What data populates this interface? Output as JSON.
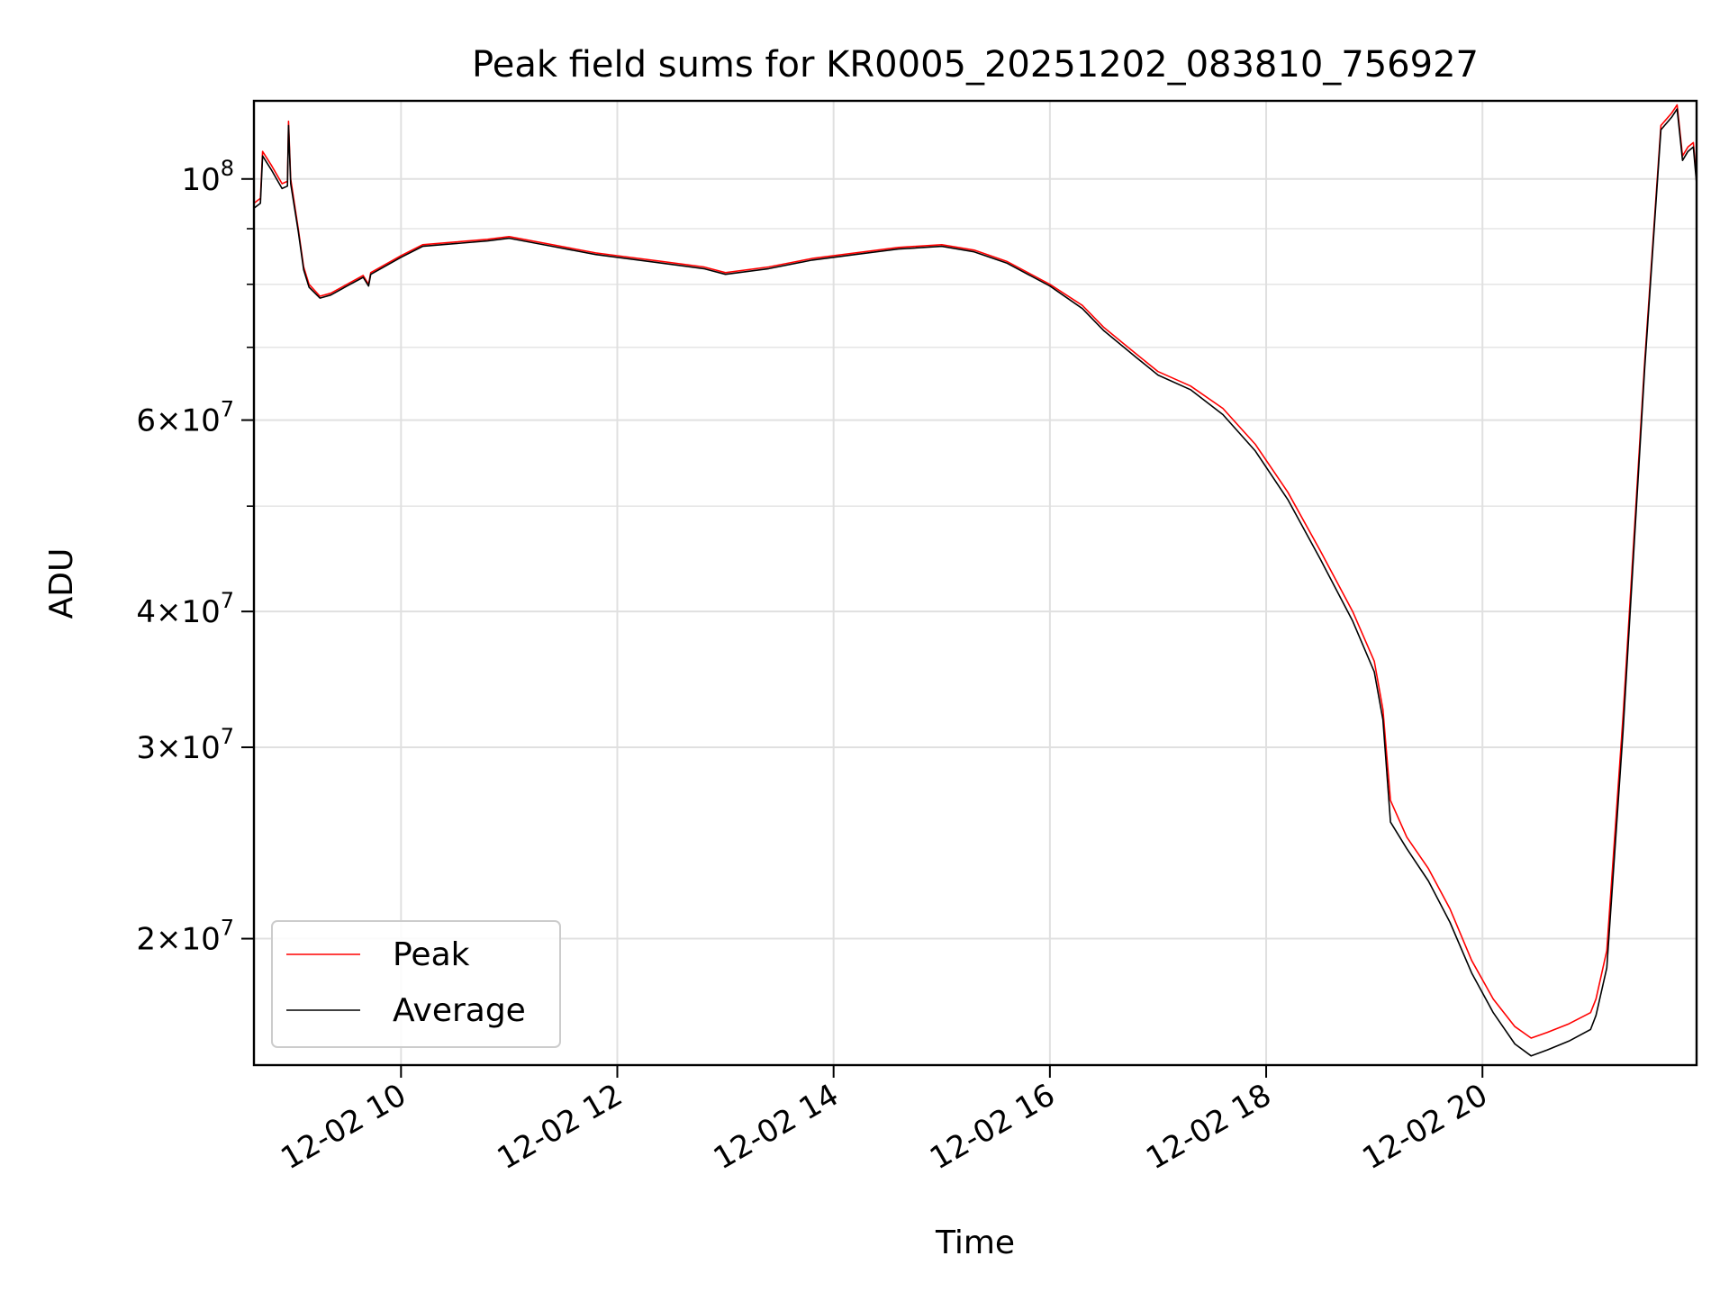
{
  "chart_data": {
    "type": "line",
    "title": "Peak field sums for KR0005_20251202_083810_756927",
    "xlabel": "Time",
    "ylabel": "ADU",
    "x_unit": "hour of 12-02",
    "xlim": [
      8.64,
      21.98
    ],
    "ylim": [
      15300000,
      118000000
    ],
    "y_scale": "log",
    "grid": true,
    "legend_position": "lower-left",
    "x_ticks": [
      {
        "value": 10,
        "label": "12-02 10"
      },
      {
        "value": 12,
        "label": "12-02 12"
      },
      {
        "value": 14,
        "label": "12-02 14"
      },
      {
        "value": 16,
        "label": "12-02 16"
      },
      {
        "value": 18,
        "label": "12-02 18"
      },
      {
        "value": 20,
        "label": "12-02 20"
      }
    ],
    "y_ticks": [
      {
        "value": 100000000,
        "mantissa": "",
        "base": "10",
        "exp": "8"
      },
      {
        "value": 60000000,
        "mantissa": "6",
        "base": "10",
        "exp": "7"
      },
      {
        "value": 40000000,
        "mantissa": "4",
        "base": "10",
        "exp": "7"
      },
      {
        "value": 30000000,
        "mantissa": "3",
        "base": "10",
        "exp": "7"
      },
      {
        "value": 20000000,
        "mantissa": "2",
        "base": "10",
        "exp": "7"
      }
    ],
    "y_minor_gridlines": [
      70000000,
      80000000,
      90000000,
      50000000
    ],
    "series": [
      {
        "name": "Peak",
        "color": "#ff0000",
        "x": [
          8.64,
          8.7,
          8.72,
          8.8,
          8.9,
          8.95,
          8.96,
          8.98,
          9.05,
          9.1,
          9.15,
          9.25,
          9.35,
          9.5,
          9.65,
          9.7,
          9.72,
          10.0,
          10.2,
          10.5,
          10.8,
          11.0,
          11.4,
          11.8,
          12.0,
          12.4,
          12.8,
          13.0,
          13.4,
          13.8,
          14.2,
          14.6,
          15.0,
          15.3,
          15.6,
          16.0,
          16.3,
          16.5,
          16.8,
          17.0,
          17.3,
          17.6,
          17.9,
          18.2,
          18.5,
          18.8,
          19.0,
          19.08,
          19.15,
          19.3,
          19.5,
          19.7,
          19.9,
          20.1,
          20.3,
          20.45,
          20.6,
          20.8,
          21.0,
          21.05,
          21.15,
          21.3,
          21.5,
          21.65,
          21.75,
          21.8,
          21.85,
          21.9,
          21.95,
          21.98
        ],
        "y": [
          95000000,
          96000000,
          106000000,
          103000000,
          99000000,
          99500000,
          113000000,
          100000000,
          90000000,
          83000000,
          80000000,
          78000000,
          78500000,
          80000000,
          81500000,
          80000000,
          82000000,
          85000000,
          87000000,
          87500000,
          88000000,
          88500000,
          87000000,
          85500000,
          85000000,
          84000000,
          83000000,
          82000000,
          83000000,
          84500000,
          85500000,
          86500000,
          87000000,
          86000000,
          84000000,
          80000000,
          76500000,
          73000000,
          69000000,
          66500000,
          64500000,
          61500000,
          57000000,
          51500000,
          45500000,
          40000000,
          36000000,
          32500000,
          26800000,
          24800000,
          23200000,
          21300000,
          19100000,
          17600000,
          16600000,
          16200000,
          16400000,
          16700000,
          17100000,
          17600000,
          19500000,
          32000000,
          68000000,
          112000000,
          115000000,
          117000000,
          105000000,
          107000000,
          108000000,
          100000000
        ]
      },
      {
        "name": "Average",
        "color": "#000000",
        "x": [
          8.64,
          8.7,
          8.72,
          8.8,
          8.9,
          8.95,
          8.96,
          8.98,
          9.05,
          9.1,
          9.15,
          9.25,
          9.35,
          9.5,
          9.65,
          9.7,
          9.72,
          10.0,
          10.2,
          10.5,
          10.8,
          11.0,
          11.4,
          11.8,
          12.0,
          12.4,
          12.8,
          13.0,
          13.4,
          13.8,
          14.2,
          14.6,
          15.0,
          15.3,
          15.6,
          16.0,
          16.3,
          16.5,
          16.8,
          17.0,
          17.3,
          17.6,
          17.9,
          18.2,
          18.5,
          18.8,
          19.0,
          19.08,
          19.15,
          19.3,
          19.5,
          19.7,
          19.9,
          20.1,
          20.3,
          20.45,
          20.6,
          20.8,
          21.0,
          21.05,
          21.15,
          21.3,
          21.5,
          21.65,
          21.75,
          21.8,
          21.85,
          21.9,
          21.95,
          21.98
        ],
        "y": [
          94000000,
          95000000,
          105000000,
          102000000,
          98000000,
          98500000,
          112000000,
          99000000,
          89500000,
          82500000,
          79500000,
          77700000,
          78200000,
          79700000,
          81200000,
          79700000,
          81700000,
          84700000,
          86700000,
          87200000,
          87700000,
          88200000,
          86700000,
          85200000,
          84700000,
          83700000,
          82700000,
          81700000,
          82700000,
          84200000,
          85200000,
          86200000,
          86700000,
          85700000,
          83700000,
          79700000,
          76000000,
          72500000,
          68500000,
          66000000,
          64000000,
          60700000,
          56200000,
          50700000,
          44700000,
          39200000,
          35200000,
          31800000,
          25600000,
          24200000,
          22600000,
          20700000,
          18600000,
          17100000,
          16000000,
          15600000,
          15800000,
          16100000,
          16500000,
          17000000,
          18800000,
          31000000,
          67000000,
          111000000,
          114000000,
          116000000,
          104000000,
          106000000,
          107000000,
          99000000
        ]
      }
    ]
  }
}
